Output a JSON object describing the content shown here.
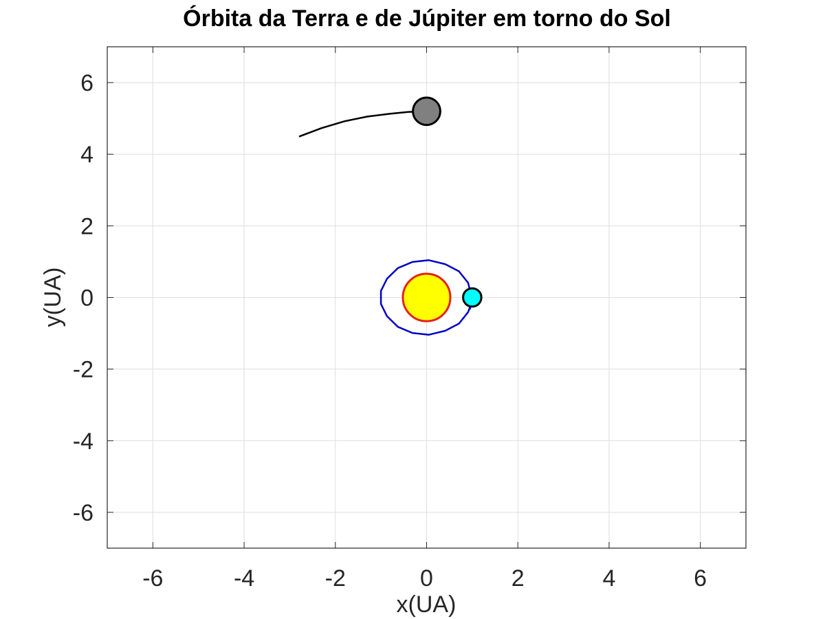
{
  "chart_data": {
    "type": "line",
    "title": "Órbita da Terra e de Júpiter em torno do Sol",
    "xlabel": "x(UA)",
    "ylabel": "y(UA)",
    "xlim": [
      -7,
      7
    ],
    "ylim": [
      -7,
      7
    ],
    "xticks": [
      -6,
      -4,
      -2,
      0,
      2,
      4,
      6
    ],
    "yticks": [
      -6,
      -4,
      -2,
      0,
      2,
      4,
      6
    ],
    "xtick_labels": [
      "-6",
      "-4",
      "-2",
      "0",
      "2",
      "4",
      "6"
    ],
    "ytick_labels": [
      "-6",
      "-4",
      "-2",
      "0",
      "2",
      "4",
      "6"
    ],
    "grid": true,
    "series": [
      {
        "color": "#0000c8",
        "x": [
          0.95,
          0.99,
          0.91,
          0.71,
          0.41,
          0.05,
          -0.31,
          -0.63,
          -0.87,
          -1.0,
          -1.0,
          -0.87,
          -0.63,
          -0.31,
          0.05,
          0.41,
          0.71,
          0.91,
          0.99,
          0.95
        ],
        "y": [
          -0.32,
          0.0,
          0.41,
          0.73,
          0.93,
          1.04,
          0.99,
          0.82,
          0.52,
          0.18,
          -0.18,
          -0.52,
          -0.82,
          -0.99,
          -1.04,
          -0.93,
          -0.73,
          -0.41,
          -0.13,
          -0.32
        ]
      },
      {
        "color": "#000000",
        "x": [
          -2.78,
          -2.3,
          -1.8,
          -1.3,
          -0.8,
          -0.4,
          0.0
        ],
        "y": [
          4.5,
          4.73,
          4.92,
          5.05,
          5.13,
          5.18,
          5.2
        ]
      }
    ],
    "markers": [
      {
        "x": 0.0,
        "y": 0.0,
        "radius_data_units": 0.52,
        "fill": "#ffff00",
        "stroke": "#e8201a"
      },
      {
        "x": 1.0,
        "y": 0.0,
        "radius_data_units": 0.2,
        "fill": "#00ffff",
        "stroke": "#000000"
      },
      {
        "x": 0.0,
        "y": 5.2,
        "radius_data_units": 0.3,
        "fill": "#808080",
        "stroke": "#000000"
      }
    ],
    "colors": {
      "axis": "#262626",
      "grid": "#dedede",
      "background": "#ffffff"
    }
  }
}
